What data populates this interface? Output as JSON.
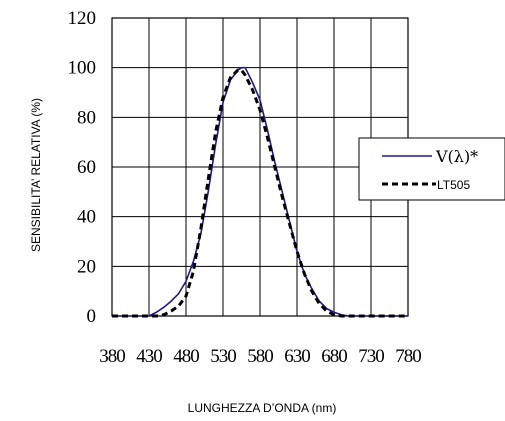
{
  "chart_data": {
    "type": "line",
    "xlabel": "LUNGHEZZA D’ONDA (nm)",
    "ylabel": "SENSIBILITA’ RELATIVA (%)",
    "x_ticks": [
      "380",
      "430",
      "480",
      "530",
      "580",
      "630",
      "680",
      "730",
      "780"
    ],
    "y_ticks": [
      "0",
      "20",
      "40",
      "60",
      "80",
      "100",
      "120"
    ],
    "xlim": [
      380,
      780
    ],
    "ylim": [
      0,
      120
    ],
    "grid": true,
    "legend_position": "right",
    "series": [
      {
        "name": "V(λ)*",
        "color": "#1a1a8c",
        "style": "solid",
        "x": [
          380,
          400,
          420,
          430,
          440,
          450,
          460,
          470,
          480,
          490,
          500,
          510,
          520,
          530,
          540,
          550,
          555,
          560,
          570,
          580,
          590,
          600,
          610,
          620,
          630,
          640,
          650,
          660,
          670,
          680,
          690,
          700,
          720,
          740,
          760,
          780
        ],
        "values": [
          0,
          0,
          0,
          0,
          1.5,
          3.5,
          6,
          9,
          14,
          22,
          33,
          50,
          69,
          86,
          95,
          99,
          100,
          100,
          94,
          87,
          75,
          62,
          50,
          38,
          26,
          17,
          11,
          6,
          3,
          1.5,
          0.5,
          0,
          0,
          0,
          0,
          0
        ]
      },
      {
        "name": "LT505",
        "color": "#000000",
        "style": "dashed",
        "x": [
          380,
          400,
          420,
          440,
          450,
          460,
          470,
          480,
          490,
          500,
          510,
          520,
          530,
          540,
          550,
          555,
          560,
          570,
          580,
          590,
          600,
          610,
          620,
          630,
          640,
          650,
          660,
          670,
          680,
          690,
          700,
          720,
          740,
          760,
          780
        ],
        "values": [
          0,
          0,
          0,
          0,
          0.5,
          2,
          4,
          8,
          18,
          35,
          55,
          74,
          88,
          96,
          99,
          99,
          97,
          91,
          83,
          72,
          60,
          48,
          37,
          26,
          17,
          10,
          5,
          2,
          0.5,
          0,
          0,
          0,
          0,
          0,
          0
        ]
      }
    ]
  }
}
